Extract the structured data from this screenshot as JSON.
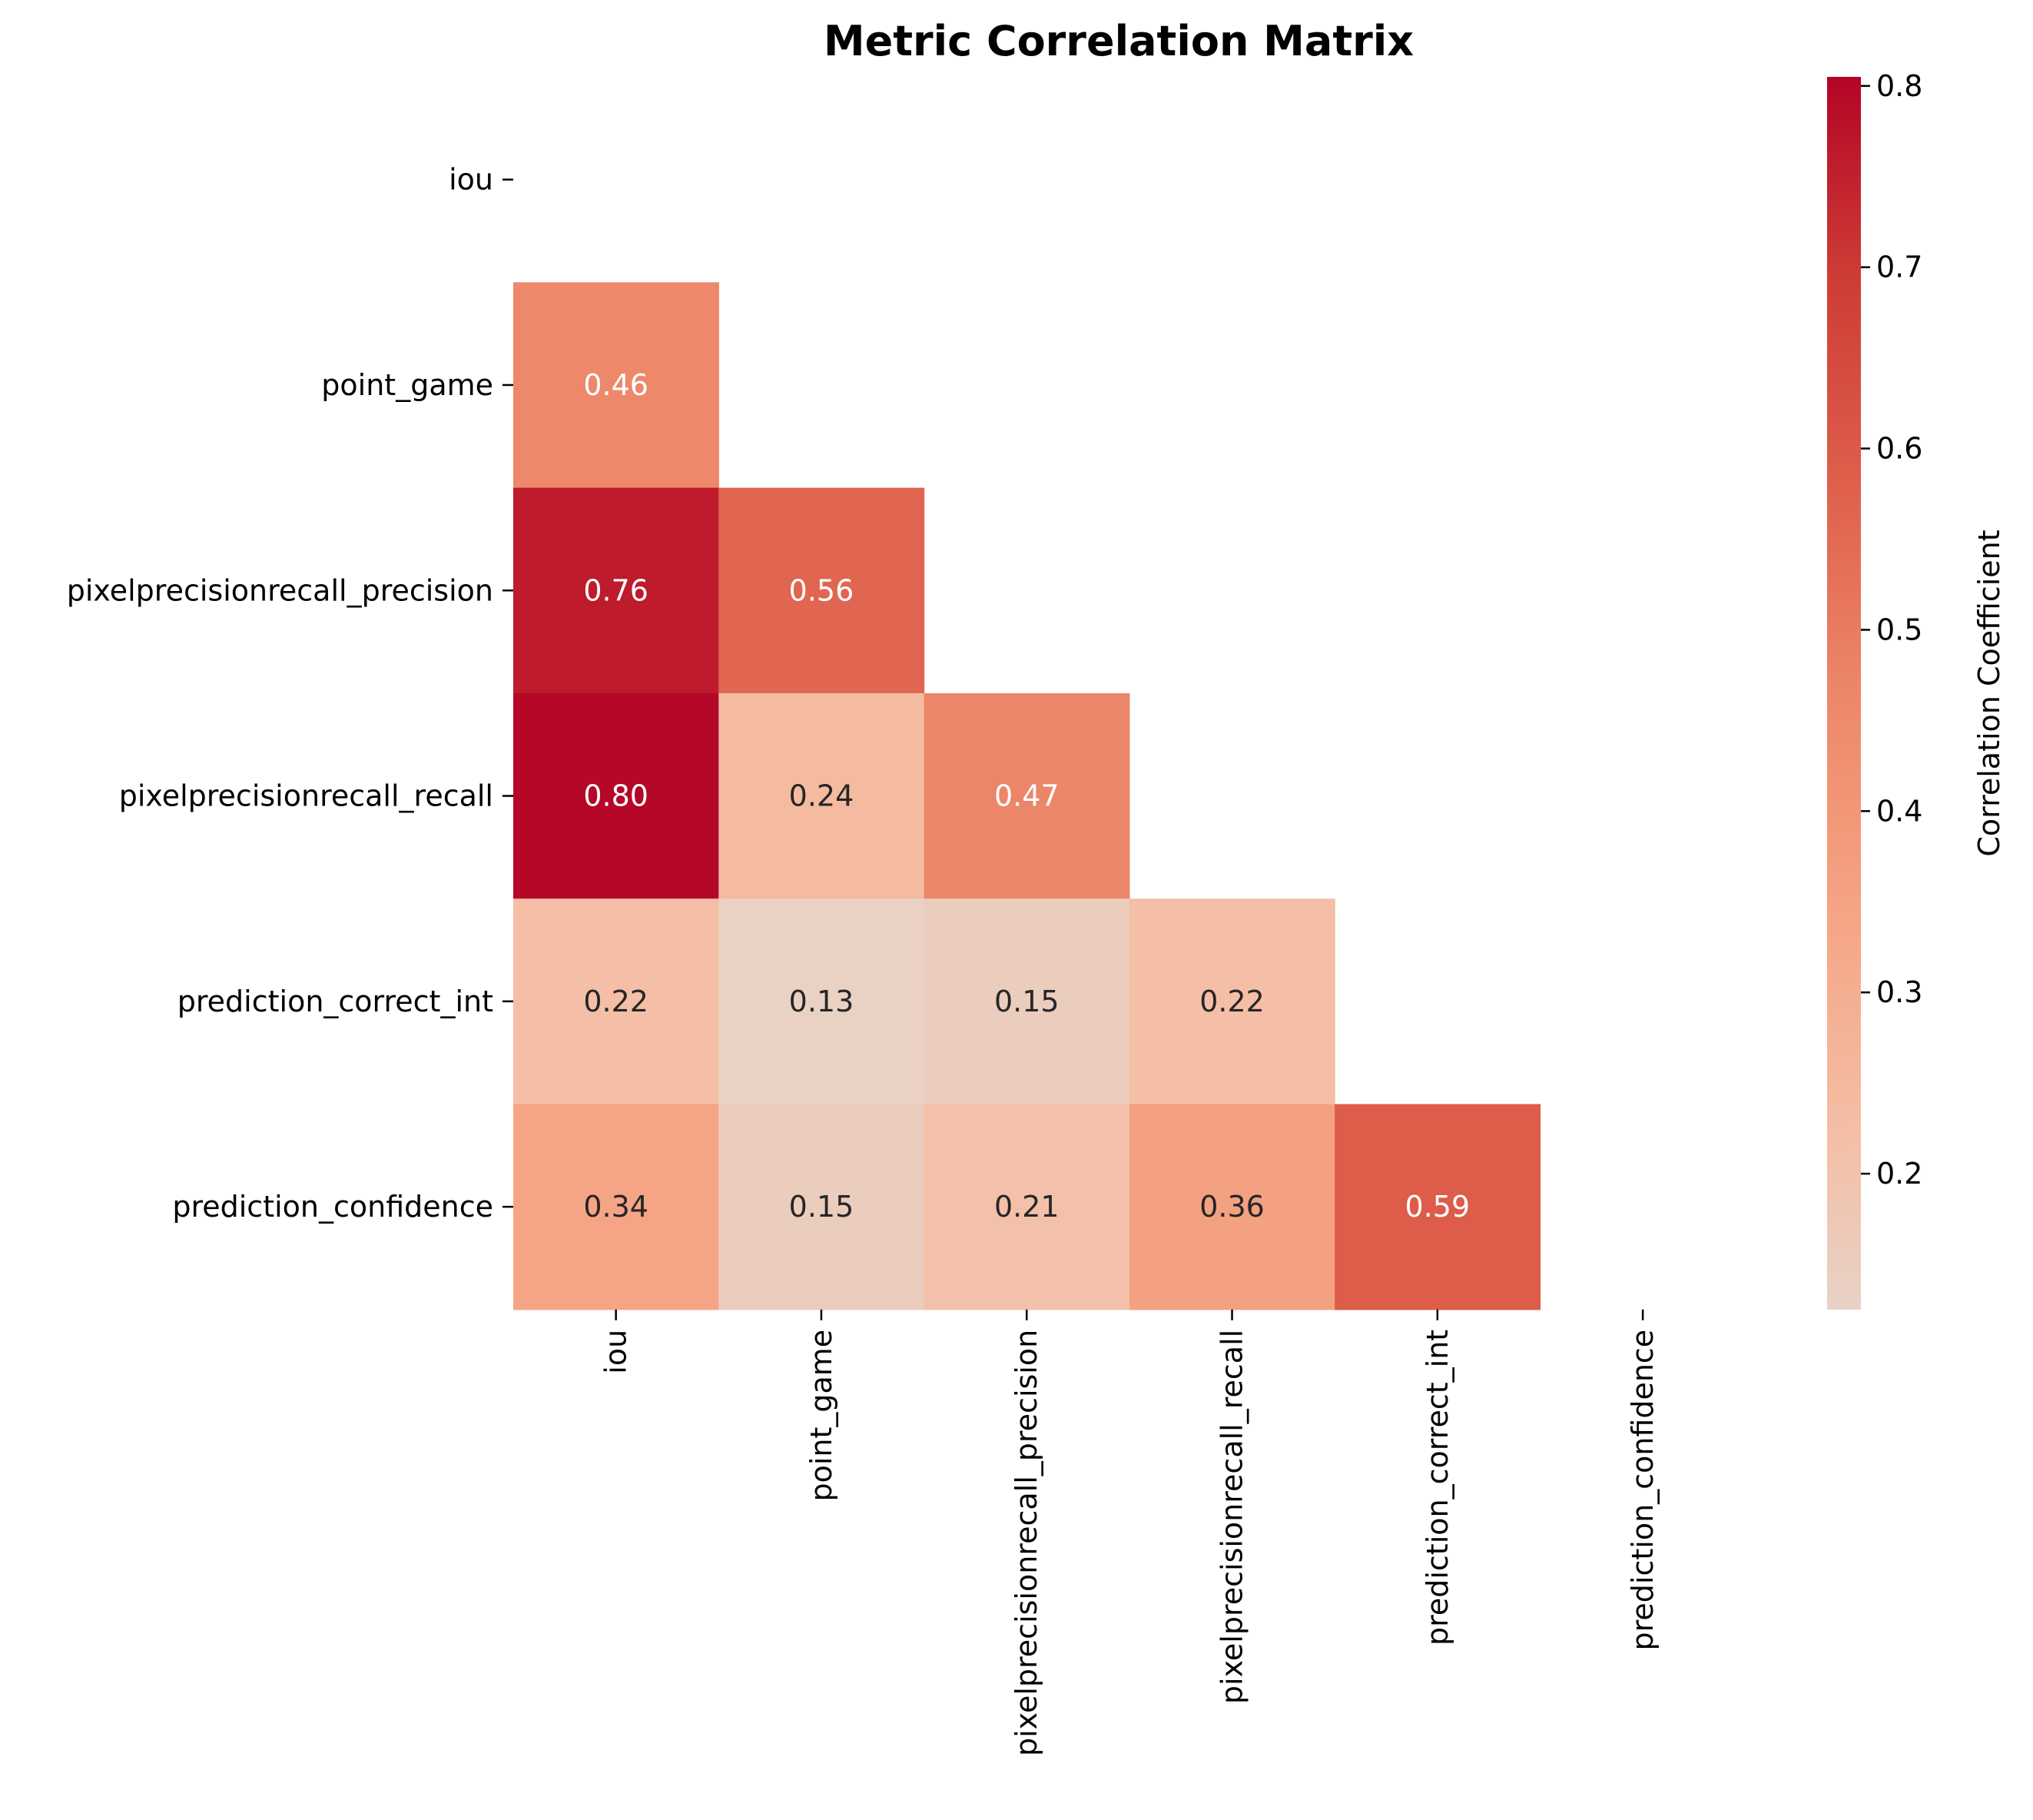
{
  "chart_data": {
    "type": "heatmap",
    "title": "Metric Correlation Matrix",
    "rows": [
      "iou",
      "point_game",
      "pixelprecisionrecall_precision",
      "pixelprecisionrecall_recall",
      "prediction_correct_int",
      "prediction_confidence"
    ],
    "columns": [
      "iou",
      "point_game",
      "pixelprecisionrecall_precision",
      "pixelprecisionrecall_recall",
      "prediction_correct_int",
      "prediction_confidence"
    ],
    "mask": "upper-triangle including diagonal",
    "cells": [
      {
        "row": 1,
        "col": 0,
        "value": 0.46,
        "label": "0.46"
      },
      {
        "row": 2,
        "col": 0,
        "value": 0.76,
        "label": "0.76"
      },
      {
        "row": 2,
        "col": 1,
        "value": 0.56,
        "label": "0.56"
      },
      {
        "row": 3,
        "col": 0,
        "value": 0.8,
        "label": "0.80"
      },
      {
        "row": 3,
        "col": 1,
        "value": 0.24,
        "label": "0.24"
      },
      {
        "row": 3,
        "col": 2,
        "value": 0.47,
        "label": "0.47"
      },
      {
        "row": 4,
        "col": 0,
        "value": 0.22,
        "label": "0.22"
      },
      {
        "row": 4,
        "col": 1,
        "value": 0.13,
        "label": "0.13"
      },
      {
        "row": 4,
        "col": 2,
        "value": 0.15,
        "label": "0.15"
      },
      {
        "row": 4,
        "col": 3,
        "value": 0.22,
        "label": "0.22"
      },
      {
        "row": 5,
        "col": 0,
        "value": 0.34,
        "label": "0.34"
      },
      {
        "row": 5,
        "col": 1,
        "value": 0.15,
        "label": "0.15"
      },
      {
        "row": 5,
        "col": 2,
        "value": 0.21,
        "label": "0.21"
      },
      {
        "row": 5,
        "col": 3,
        "value": 0.36,
        "label": "0.36"
      },
      {
        "row": 5,
        "col": 4,
        "value": 0.59,
        "label": "0.59"
      }
    ],
    "colorbar": {
      "label": "Correlation Coefficient",
      "range": [
        0.125,
        0.805
      ],
      "ticks": [
        "0.2",
        "0.3",
        "0.4",
        "0.5",
        "0.6",
        "0.7",
        "0.8"
      ],
      "colormap": "coolwarm (center 0)",
      "color_stops": [
        {
          "v": 0.125,
          "c": "#e8d2c6"
        },
        {
          "v": 0.22,
          "c": "#f4bfa6"
        },
        {
          "v": 0.35,
          "c": "#f5a383"
        },
        {
          "v": 0.47,
          "c": "#ec8668"
        },
        {
          "v": 0.58,
          "c": "#df5f4c"
        },
        {
          "v": 0.7,
          "c": "#cc3a34"
        },
        {
          "v": 0.805,
          "c": "#b40426"
        }
      ]
    },
    "grid": false
  }
}
